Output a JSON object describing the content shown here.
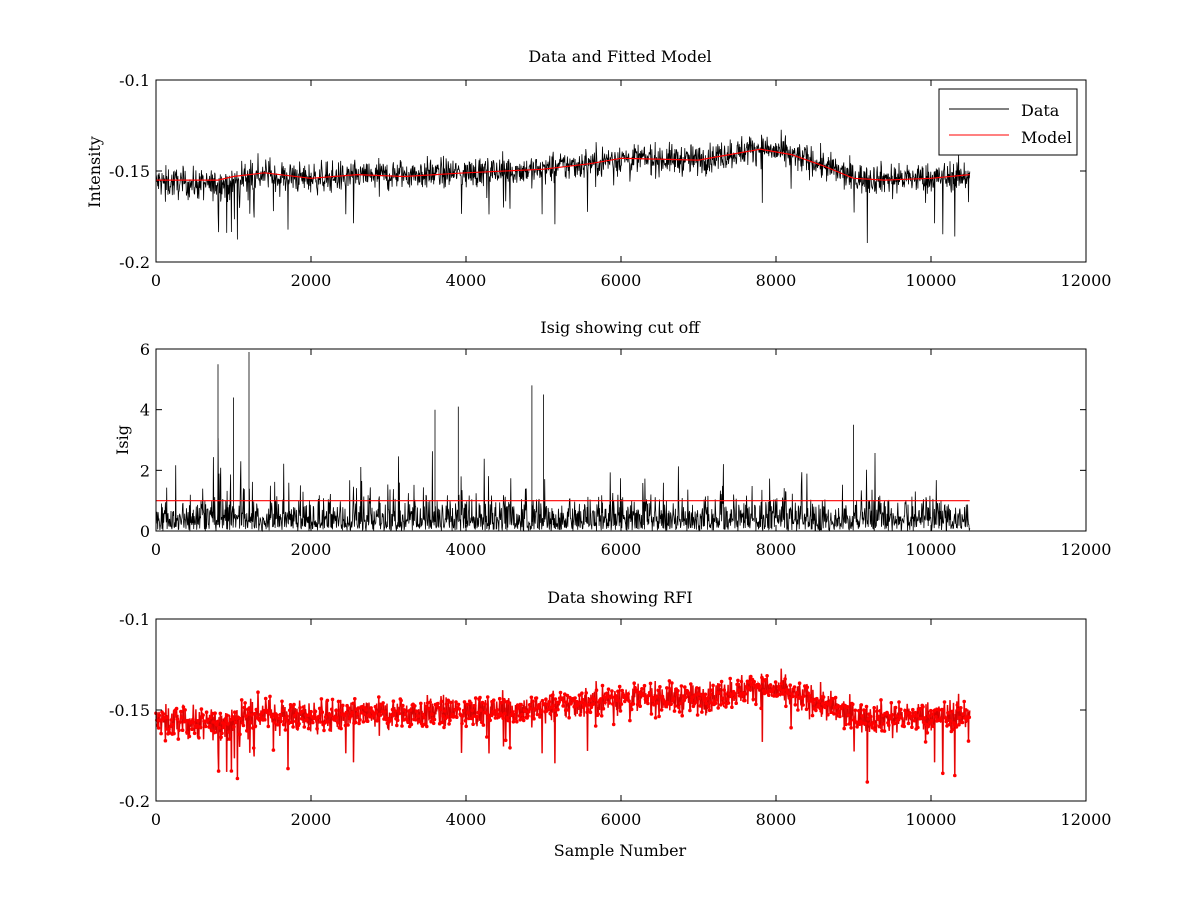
{
  "colors": {
    "data": "#000000",
    "model": "#ff0000",
    "rfi": "#ff0000",
    "axes": "#000000",
    "background": "#ffffff"
  },
  "chart_data": [
    {
      "type": "line",
      "title": "Data and Fitted Model",
      "xlabel": "",
      "ylabel": "Intensity",
      "xlim": [
        0,
        12000
      ],
      "ylim": [
        -0.2,
        -0.1
      ],
      "xticks": [
        0,
        2000,
        4000,
        6000,
        8000,
        10000,
        12000
      ],
      "xtick_labels": [
        "0",
        "2000",
        "4000",
        "6000",
        "8000",
        "10000",
        "12000"
      ],
      "yticks": [
        -0.1,
        -0.15,
        -0.2
      ],
      "ytick_labels": [
        "-0.1",
        "-0.15",
        "-0.2"
      ],
      "legend": {
        "placement": "top-right",
        "entries": [
          "Data",
          "Model"
        ]
      },
      "series": [
        {
          "name": "Data",
          "color": "#000000",
          "x_range": [
            0,
            10500
          ],
          "approx_mean_by_x": [
            [
              0,
              -0.156
            ],
            [
              800,
              -0.158
            ],
            [
              1200,
              -0.152
            ],
            [
              2000,
              -0.154
            ],
            [
              3000,
              -0.152
            ],
            [
              4000,
              -0.151
            ],
            [
              5000,
              -0.149
            ],
            [
              6000,
              -0.143
            ],
            [
              7000,
              -0.144
            ],
            [
              7800,
              -0.137
            ],
            [
              8500,
              -0.145
            ],
            [
              9000,
              -0.154
            ],
            [
              10000,
              -0.154
            ],
            [
              10500,
              -0.152
            ]
          ],
          "spread": 0.012
        },
        {
          "name": "Model",
          "color": "#ff0000",
          "points": [
            [
              0,
              -0.155
            ],
            [
              800,
              -0.155
            ],
            [
              1000,
              -0.153
            ],
            [
              1400,
              -0.151
            ],
            [
              2000,
              -0.154
            ],
            [
              2600,
              -0.152
            ],
            [
              3200,
              -0.153
            ],
            [
              4000,
              -0.151
            ],
            [
              5000,
              -0.149
            ],
            [
              5600,
              -0.146
            ],
            [
              6000,
              -0.143
            ],
            [
              7000,
              -0.144
            ],
            [
              7400,
              -0.141
            ],
            [
              7800,
              -0.138
            ],
            [
              8200,
              -0.141
            ],
            [
              8600,
              -0.147
            ],
            [
              9000,
              -0.154
            ],
            [
              9400,
              -0.155
            ],
            [
              10000,
              -0.154
            ],
            [
              10500,
              -0.152
            ]
          ]
        }
      ]
    },
    {
      "type": "line",
      "title": "Isig showing cut off",
      "xlabel": "",
      "ylabel": "Isig",
      "xlim": [
        0,
        12000
      ],
      "ylim": [
        0,
        6
      ],
      "xticks": [
        0,
        2000,
        4000,
        6000,
        8000,
        10000,
        12000
      ],
      "xtick_labels": [
        "0",
        "2000",
        "4000",
        "6000",
        "8000",
        "10000",
        "12000"
      ],
      "yticks": [
        0,
        2,
        4,
        6
      ],
      "ytick_labels": [
        "0",
        "2",
        "4",
        "6"
      ],
      "series": [
        {
          "name": "Isig",
          "color": "#000000",
          "x_range": [
            0,
            10500
          ],
          "peaks": [
            [
              800,
              5.5
            ],
            [
              1200,
              5.9
            ],
            [
              1000,
              4.4
            ],
            [
              4850,
              4.8
            ],
            [
              3600,
              4.0
            ],
            [
              5000,
              4.5
            ],
            [
              3900,
              4.1
            ],
            [
              9000,
              3.5
            ]
          ]
        },
        {
          "name": "Cut off",
          "color": "#ff0000",
          "points": [
            [
              0,
              1.0
            ],
            [
              10500,
              1.0
            ]
          ]
        }
      ]
    },
    {
      "type": "scatter",
      "title": "Data showing RFI",
      "xlabel": "Sample Number",
      "ylabel": "",
      "xlim": [
        0,
        12000
      ],
      "ylim": [
        -0.2,
        -0.1
      ],
      "xticks": [
        0,
        2000,
        4000,
        6000,
        8000,
        10000,
        12000
      ],
      "xtick_labels": [
        "0",
        "2000",
        "4000",
        "6000",
        "8000",
        "10000",
        "12000"
      ],
      "yticks": [
        -0.1,
        -0.15,
        -0.2
      ],
      "ytick_labels": [
        "-0.1",
        "-0.15",
        "-0.2"
      ],
      "series": [
        {
          "name": "Data",
          "color": "#000000",
          "x_range": [
            0,
            10500
          ]
        },
        {
          "name": "RFI",
          "color": "#ff0000",
          "marker": "dot",
          "x_range": [
            0,
            10500
          ]
        }
      ]
    }
  ]
}
